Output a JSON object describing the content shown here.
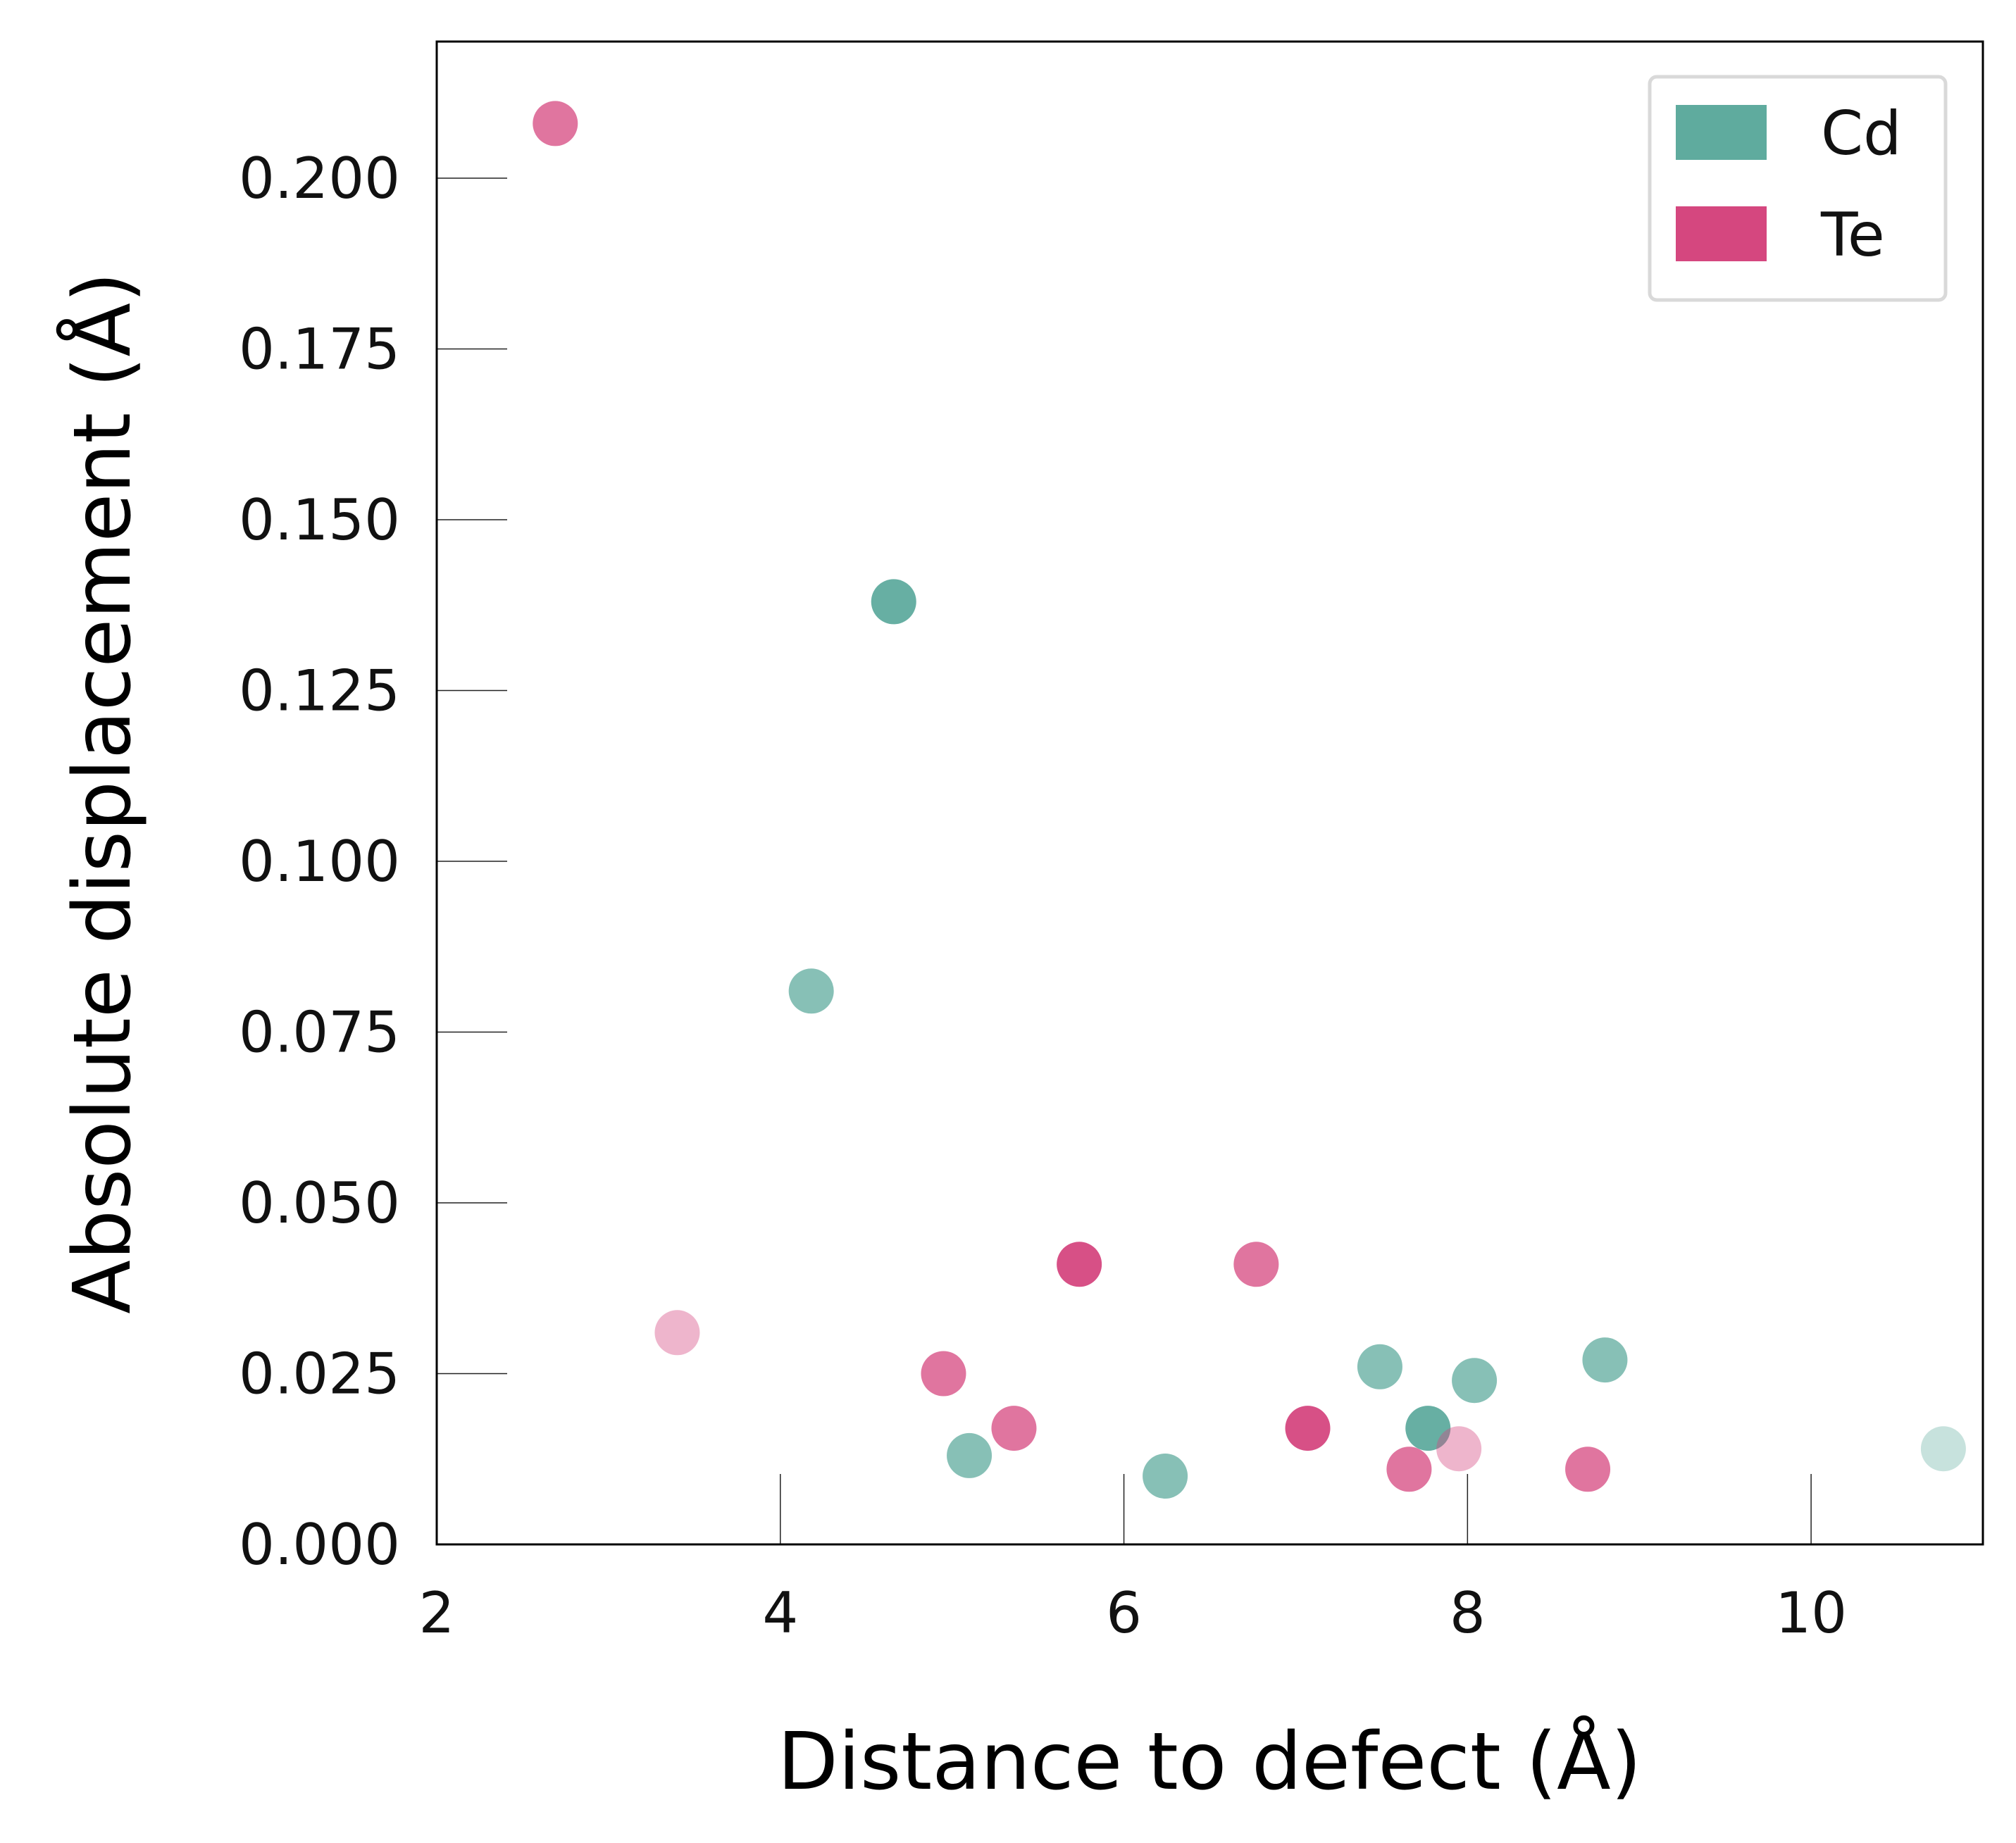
{
  "chart_data": {
    "type": "scatter",
    "title": "",
    "xlabel": "Distance to defect (Å)",
    "ylabel": "Absolute displacement (Å)",
    "xlim": [
      2,
      11
    ],
    "ylim": [
      0,
      0.22
    ],
    "xticks": [
      2,
      4,
      6,
      8,
      10
    ],
    "xtick_labels": [
      "2",
      "4",
      "6",
      "8",
      "10"
    ],
    "yticks": [
      0,
      0.025,
      0.05,
      0.075,
      0.1,
      0.125,
      0.15,
      0.175,
      0.2
    ],
    "ytick_labels": [
      "0.000",
      "0.025",
      "0.050",
      "0.075",
      "0.100",
      "0.125",
      "0.150",
      "0.175",
      "0.200"
    ],
    "grid": false,
    "legend": {
      "position": "top-right"
    },
    "series": [
      {
        "name": "Cd",
        "color": "#5fab9e",
        "points": [
          {
            "x": 4.66,
            "y": 0.138,
            "opacity": 0.95
          },
          {
            "x": 4.18,
            "y": 0.081,
            "opacity": 0.75
          },
          {
            "x": 5.1,
            "y": 0.013,
            "opacity": 0.75
          },
          {
            "x": 6.24,
            "y": 0.01,
            "opacity": 0.75
          },
          {
            "x": 7.49,
            "y": 0.026,
            "opacity": 0.75
          },
          {
            "x": 7.77,
            "y": 0.017,
            "opacity": 0.95
          },
          {
            "x": 8.04,
            "y": 0.024,
            "opacity": 0.75
          },
          {
            "x": 8.8,
            "y": 0.027,
            "opacity": 0.75
          },
          {
            "x": 10.77,
            "y": 0.014,
            "opacity": 0.35
          }
        ]
      },
      {
        "name": "Te",
        "color": "#d5477f",
        "points": [
          {
            "x": 2.69,
            "y": 0.208,
            "opacity": 0.75
          },
          {
            "x": 3.4,
            "y": 0.031,
            "opacity": 0.4
          },
          {
            "x": 4.95,
            "y": 0.025,
            "opacity": 0.75
          },
          {
            "x": 5.36,
            "y": 0.017,
            "opacity": 0.75
          },
          {
            "x": 5.74,
            "y": 0.041,
            "opacity": 0.95
          },
          {
            "x": 6.77,
            "y": 0.041,
            "opacity": 0.75
          },
          {
            "x": 7.07,
            "y": 0.017,
            "opacity": 0.95
          },
          {
            "x": 7.66,
            "y": 0.011,
            "opacity": 0.75
          },
          {
            "x": 7.95,
            "y": 0.014,
            "opacity": 0.4
          },
          {
            "x": 8.7,
            "y": 0.011,
            "opacity": 0.75
          }
        ]
      }
    ]
  }
}
